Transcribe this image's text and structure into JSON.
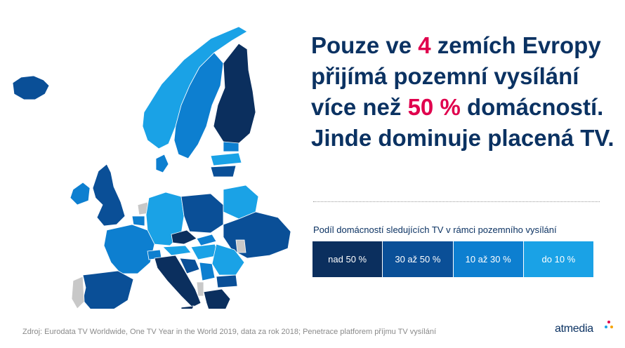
{
  "headline": {
    "part1": "Pouze ve ",
    "highlight1": "4",
    "part2": " zemích Evropy přijímá pozemní vysílání více než ",
    "highlight2": "50 %",
    "part3": " domácností. Jinde dominuje placená TV."
  },
  "legend": {
    "title": "Podíl domácností sledujících TV v rámci pozemního vysílání",
    "items": [
      {
        "label": "nad 50 %",
        "color": "#0b2f5e"
      },
      {
        "label": "30 až 50 %",
        "color": "#0a4f97"
      },
      {
        "label": "10 až 30 %",
        "color": "#0d7fd0"
      },
      {
        "label": "do 10 %",
        "color": "#1aa2e6"
      }
    ]
  },
  "colors": {
    "headline": "#0b3262",
    "highlight": "#e0004d",
    "no_data": "#c8c8c8"
  },
  "source": "Zdroj: Eurodata TV Worldwide, One TV Year in the World 2019, data za rok 2018; Penetrace platforem příjmu TV vysílání",
  "logo": {
    "text": "atmedia"
  }
}
